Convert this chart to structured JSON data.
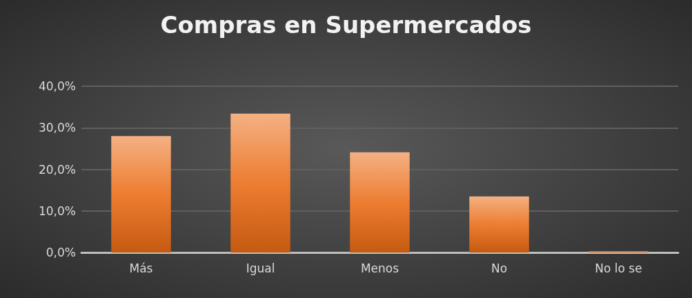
{
  "chart_data": {
    "type": "bar",
    "title": "Compras en Supermercados",
    "categories": [
      "Más",
      "Igual",
      "Menos",
      "No",
      "No lo se"
    ],
    "values": [
      28.0,
      33.4,
      24.1,
      13.5,
      0.3
    ],
    "color": "#ed7d31",
    "ylim": [
      0,
      40
    ],
    "yticks": [
      {
        "value": 0,
        "label": "0,0%"
      },
      {
        "value": 10,
        "label": "10,0%"
      },
      {
        "value": 20,
        "label": "20,0%"
      },
      {
        "value": 30,
        "label": "30,0%"
      },
      {
        "value": 40,
        "label": "40,0%"
      }
    ],
    "grid": "y"
  }
}
